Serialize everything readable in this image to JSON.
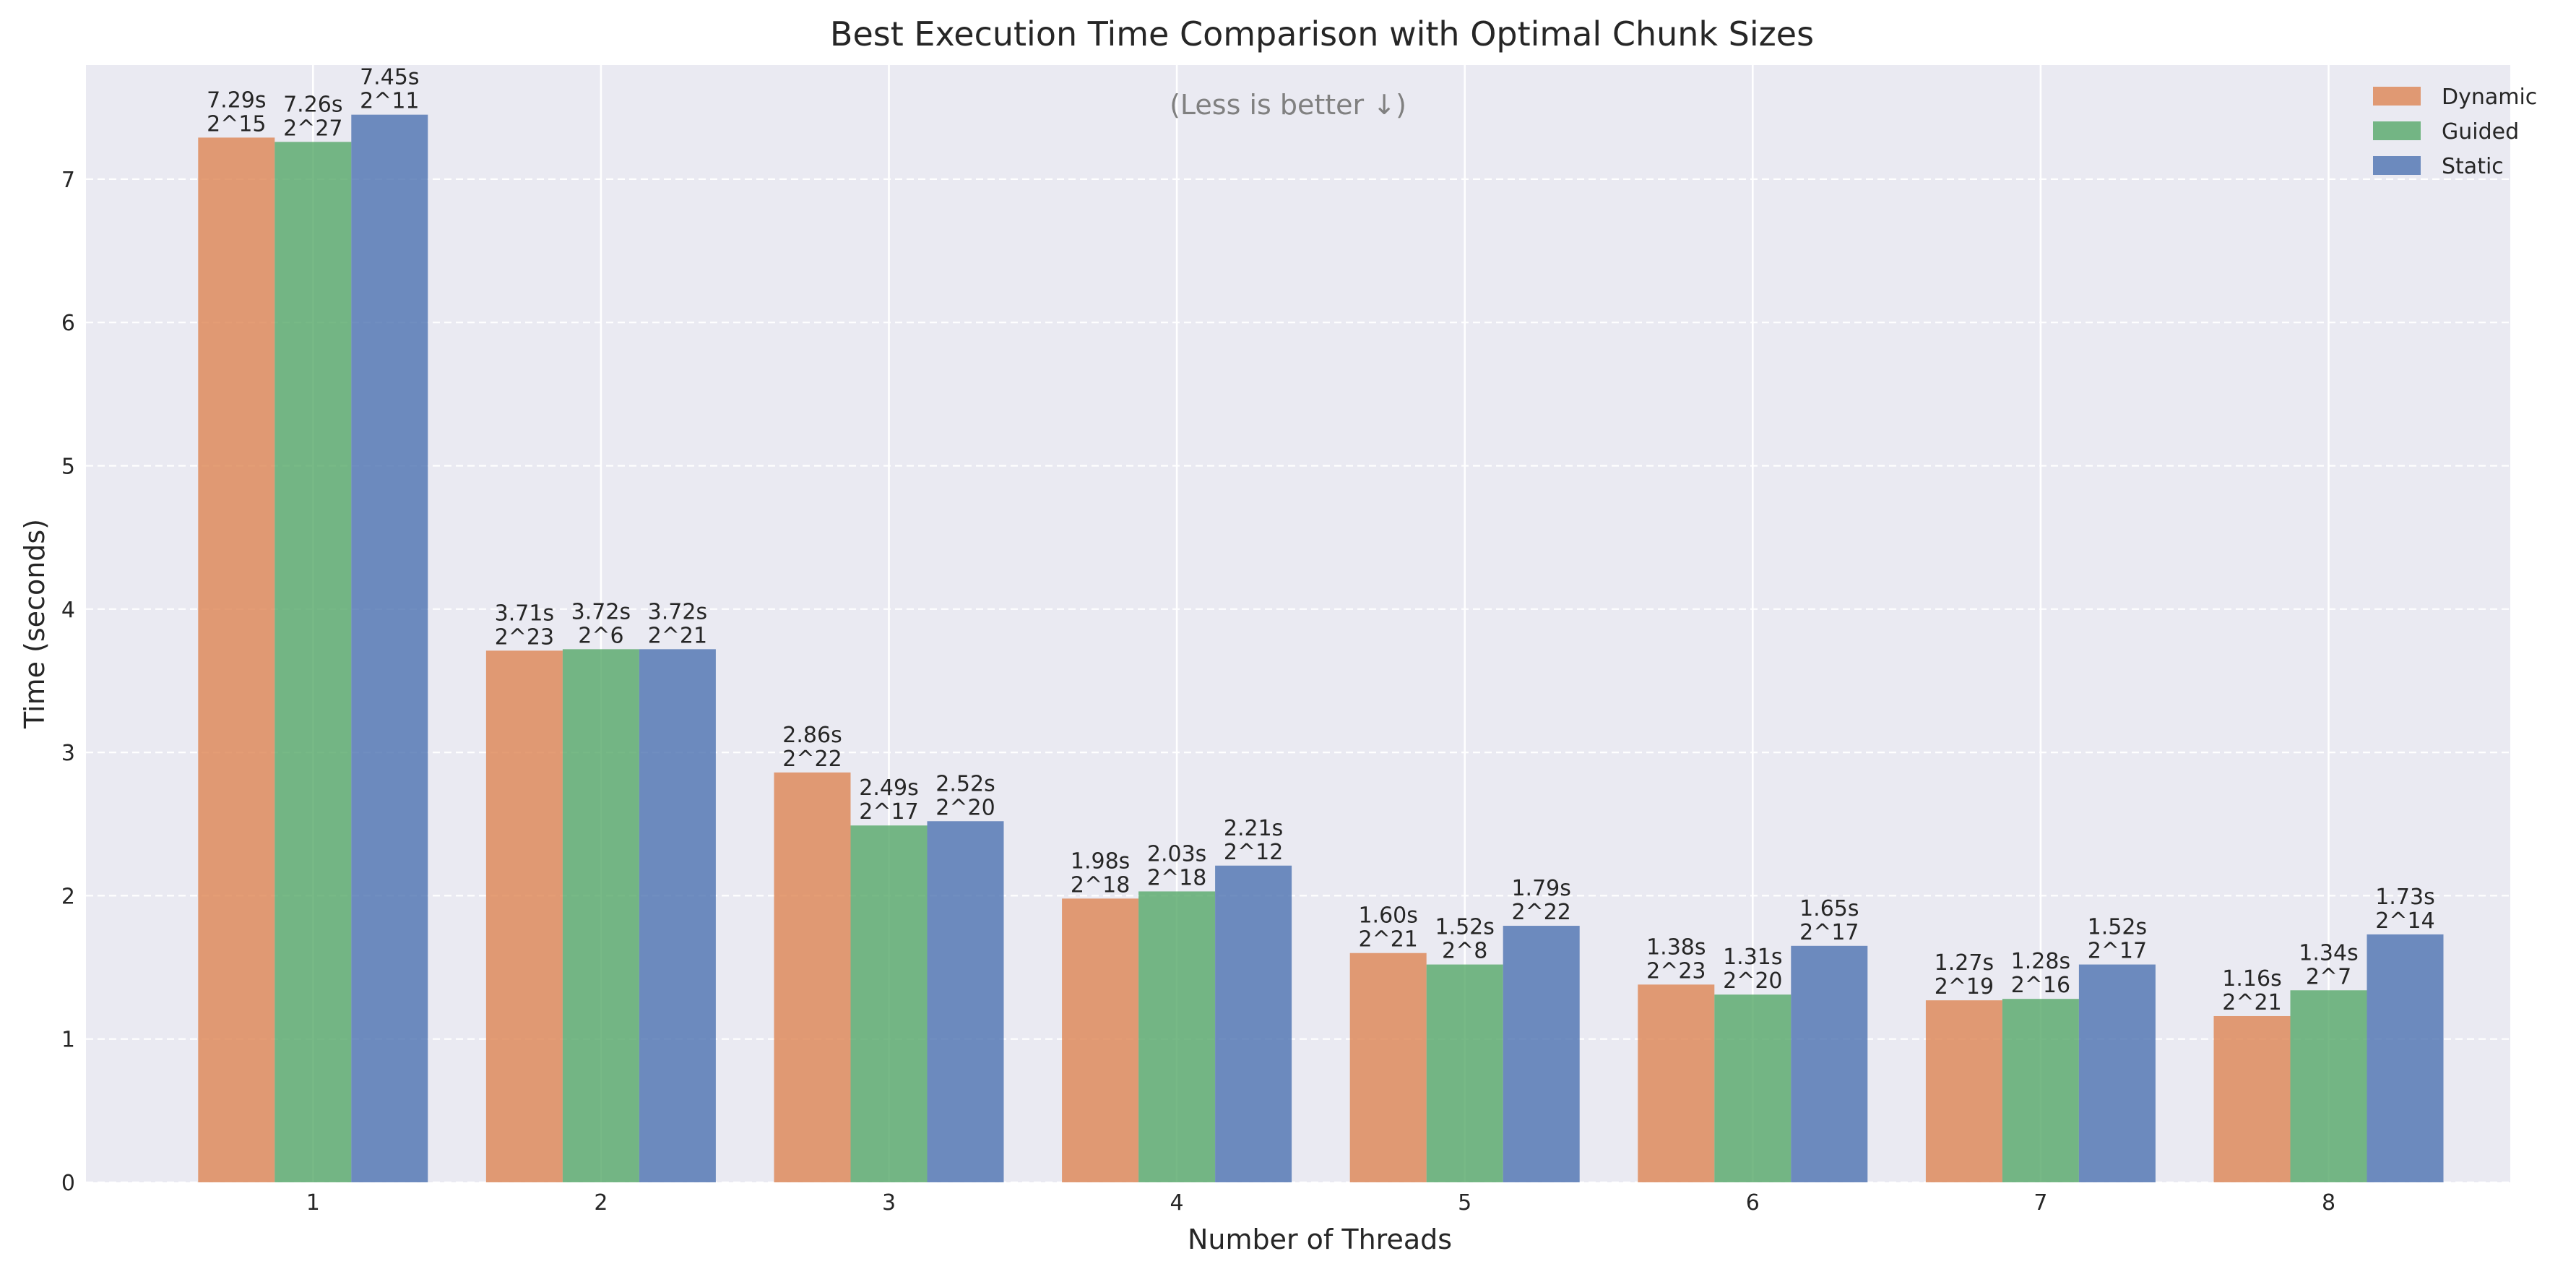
{
  "chart_data": {
    "type": "bar",
    "title": "Best Execution Time Comparison with Optimal Chunk Sizes",
    "xlabel": "Number of Threads",
    "ylabel": "Time (seconds)",
    "annotation": "(Less is better ↓)",
    "categories": [
      "1",
      "2",
      "3",
      "4",
      "5",
      "6",
      "7",
      "8"
    ],
    "ylim": [
      0,
      7.85
    ],
    "yticks": [
      0,
      1,
      2,
      3,
      4,
      5,
      6,
      7
    ],
    "grid": true,
    "legend_position": "top-right",
    "series": [
      {
        "name": "Dynamic",
        "color": "#DD8452",
        "values": [
          7.29,
          3.71,
          2.86,
          1.98,
          1.6,
          1.38,
          1.27,
          1.16
        ],
        "time_labels": [
          "7.29s",
          "3.71s",
          "2.86s",
          "1.98s",
          "1.60s",
          "1.38s",
          "1.27s",
          "1.16s"
        ],
        "chunk_labels": [
          "2^15",
          "2^23",
          "2^22",
          "2^18",
          "2^21",
          "2^23",
          "2^19",
          "2^21"
        ]
      },
      {
        "name": "Guided",
        "color": "#55A868",
        "values": [
          7.26,
          3.72,
          2.49,
          2.03,
          1.52,
          1.31,
          1.28,
          1.34
        ],
        "time_labels": [
          "7.26s",
          "3.72s",
          "2.49s",
          "2.03s",
          "1.52s",
          "1.31s",
          "1.28s",
          "1.34s"
        ],
        "chunk_labels": [
          "2^27",
          "2^6",
          "2^17",
          "2^18",
          "2^8",
          "2^20",
          "2^16",
          "2^7"
        ]
      },
      {
        "name": "Static",
        "color": "#4C72B0",
        "values": [
          7.45,
          3.72,
          2.52,
          2.21,
          1.79,
          1.65,
          1.52,
          1.73
        ],
        "time_labels": [
          "7.45s",
          "3.72s",
          "2.52s",
          "2.21s",
          "1.79s",
          "1.65s",
          "1.52s",
          "1.73s"
        ],
        "chunk_labels": [
          "2^11",
          "2^21",
          "2^20",
          "2^12",
          "2^22",
          "2^17",
          "2^17",
          "2^14"
        ]
      }
    ]
  },
  "style": {
    "plot_background": "#EAEAF2",
    "grid_color": "#FFFFFF"
  }
}
